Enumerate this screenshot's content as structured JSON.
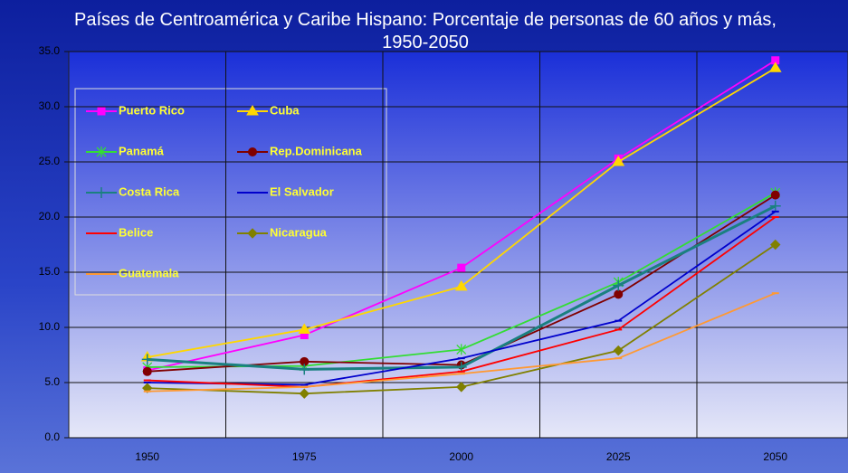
{
  "chart_data": {
    "type": "line",
    "title": "Países de Centroamérica y Caribe Hispano: Porcentaje de personas de 60 años y más, 1950-2050",
    "categories": [
      "1950",
      "1975",
      "2000",
      "2025",
      "2050"
    ],
    "ylim": [
      0,
      35
    ],
    "yticks": [
      {
        "value": 0,
        "label": "0.0"
      },
      {
        "value": 5,
        "label": "5.0"
      },
      {
        "value": 10,
        "label": "10.0"
      },
      {
        "value": 15,
        "label": "15.0"
      },
      {
        "value": 20,
        "label": "20.0"
      },
      {
        "value": 25,
        "label": "25.0"
      },
      {
        "value": 30,
        "label": "30.0"
      },
      {
        "value": 35,
        "label": "35.0"
      }
    ],
    "grid": true,
    "legend": "upper left",
    "series": [
      {
        "name": "Puerto Rico",
        "color": "#ff00ff",
        "marker": "square",
        "values": [
          6.1,
          9.3,
          15.4,
          25.3,
          34.2
        ]
      },
      {
        "name": "Cuba",
        "color": "#ffd700",
        "marker": "triangle",
        "values": [
          7.3,
          9.8,
          13.7,
          25.0,
          33.5
        ]
      },
      {
        "name": "Panamá",
        "color": "#33dd33",
        "marker": "star",
        "values": [
          6.4,
          6.5,
          8.0,
          14.1,
          22.2
        ]
      },
      {
        "name": "Rep.Dominicana",
        "color": "#800000",
        "marker": "circle",
        "values": [
          6.0,
          6.9,
          6.6,
          13.0,
          22.0
        ]
      },
      {
        "name": "Costa Rica",
        "color": "#1a8080",
        "marker": "plus",
        "values": [
          7.1,
          6.2,
          6.4,
          13.8,
          21.0
        ]
      },
      {
        "name": "El Salvador",
        "color": "#0000cc",
        "marker": "dash",
        "values": [
          5.0,
          4.8,
          7.2,
          10.6,
          20.5
        ]
      },
      {
        "name": "Belice",
        "color": "#ff0000",
        "marker": "dash",
        "values": [
          5.2,
          4.6,
          6.0,
          9.8,
          20.0
        ]
      },
      {
        "name": "Nicaragua",
        "color": "#808000",
        "marker": "diamond",
        "values": [
          4.5,
          4.0,
          4.6,
          7.9,
          17.5
        ]
      },
      {
        "name": "Guatemala",
        "color": "#ff9933",
        "marker": "dash",
        "values": [
          4.2,
          4.6,
          5.8,
          7.2,
          13.1
        ]
      }
    ]
  }
}
